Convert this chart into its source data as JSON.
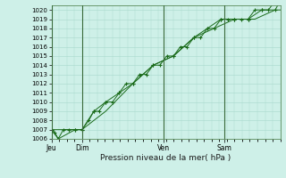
{
  "title": "Pression niveau de la mer( hPa )",
  "bg_color": "#cef0e8",
  "grid_color": "#a8d8cc",
  "line_color": "#1a6b1a",
  "ylim": [
    1006,
    1020.5
  ],
  "ytick_min": 1006,
  "ytick_max": 1020,
  "day_labels": [
    "Jeu",
    "Dim",
    "Ven",
    "Sam"
  ],
  "day_positions": [
    0,
    36,
    132,
    204
  ],
  "xlim": [
    0,
    270
  ],
  "series1_x": [
    0,
    4,
    8,
    14,
    20,
    28,
    36,
    44,
    50,
    56,
    64,
    72,
    80,
    88,
    96,
    104,
    112,
    120,
    128,
    136,
    144,
    152,
    160,
    168,
    176,
    184,
    192,
    200,
    208,
    216,
    224,
    232,
    240,
    248,
    256,
    264,
    270
  ],
  "series1_y": [
    1007,
    1006.7,
    1006,
    1007,
    1007,
    1007,
    1007,
    1008,
    1009,
    1009,
    1010,
    1010,
    1011,
    1012,
    1012,
    1013,
    1013,
    1014,
    1014,
    1015,
    1015,
    1016,
    1016,
    1017,
    1017,
    1018,
    1018,
    1019,
    1019,
    1019,
    1019,
    1019,
    1020,
    1020,
    1020,
    1021,
    1021
  ],
  "series2_x": [
    0,
    8,
    28,
    36,
    50,
    64,
    80,
    96,
    120,
    144,
    168,
    184,
    200,
    216,
    232,
    248,
    264,
    270
  ],
  "series2_y": [
    1007,
    1006,
    1007,
    1007,
    1009,
    1010,
    1011,
    1012,
    1014,
    1015,
    1017,
    1018,
    1019,
    1019,
    1019,
    1020,
    1020,
    1021
  ],
  "series3_x": [
    0,
    20,
    36,
    64,
    96,
    120,
    144,
    168,
    192,
    216,
    240,
    264,
    270
  ],
  "series3_y": [
    1007,
    1007,
    1007,
    1009,
    1012,
    1014,
    1015,
    1017,
    1018,
    1019,
    1019,
    1020,
    1020
  ]
}
